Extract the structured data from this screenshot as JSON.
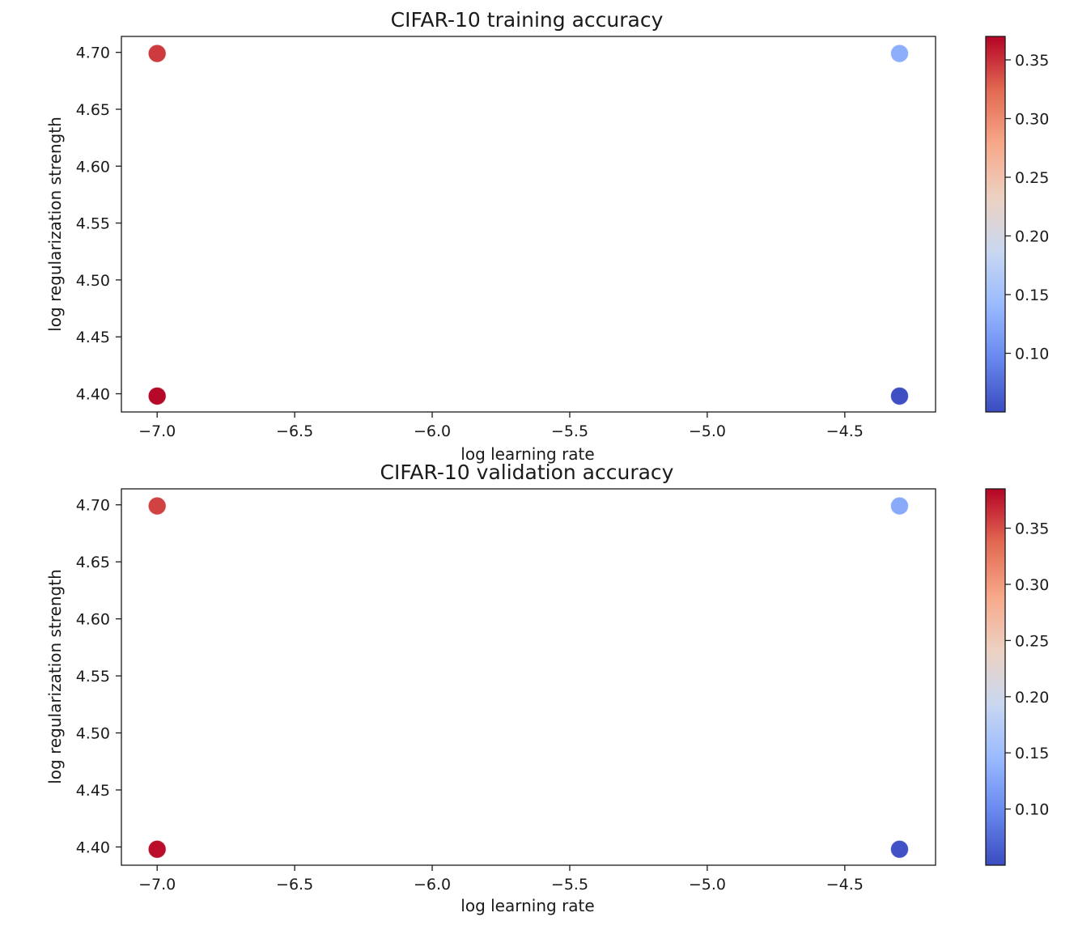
{
  "chart_data": [
    {
      "type": "scatter",
      "title": "CIFAR-10 training accuracy",
      "xlabel": "log learning rate",
      "ylabel": "log regularization strength",
      "xlim": [
        -7.13,
        -4.17
      ],
      "ylim": [
        4.384,
        4.714
      ],
      "xticks": [
        -7.0,
        -6.5,
        -6.0,
        -5.5,
        -5.0,
        -4.5
      ],
      "xtick_labels": [
        "−7.0",
        "−6.5",
        "−6.0",
        "−5.5",
        "−5.0",
        "−4.5"
      ],
      "yticks": [
        4.4,
        4.45,
        4.5,
        4.55,
        4.6,
        4.65,
        4.7
      ],
      "ytick_labels": [
        "4.40",
        "4.45",
        "4.50",
        "4.55",
        "4.60",
        "4.65",
        "4.70"
      ],
      "colormap": "coolwarm",
      "color_range": [
        0.05,
        0.37
      ],
      "colorbar_ticks": [
        0.1,
        0.15,
        0.2,
        0.25,
        0.3,
        0.35
      ],
      "colorbar_tick_labels": [
        "0.10",
        "0.15",
        "0.20",
        "0.25",
        "0.30",
        "0.35"
      ],
      "points": [
        {
          "x": -7.0,
          "y": 4.699,
          "value": 0.345
        },
        {
          "x": -7.0,
          "y": 4.398,
          "value": 0.368
        },
        {
          "x": -4.301,
          "y": 4.699,
          "value": 0.13
        },
        {
          "x": -4.301,
          "y": 4.398,
          "value": 0.052
        }
      ]
    },
    {
      "type": "scatter",
      "title": "CIFAR-10 validation accuracy",
      "xlabel": "log learning rate",
      "ylabel": "log regularization strength",
      "xlim": [
        -7.13,
        -4.17
      ],
      "ylim": [
        4.384,
        4.714
      ],
      "xticks": [
        -7.0,
        -6.5,
        -6.0,
        -5.5,
        -5.0,
        -4.5
      ],
      "xtick_labels": [
        "−7.0",
        "−6.5",
        "−6.0",
        "−5.5",
        "−5.0",
        "−4.5"
      ],
      "yticks": [
        4.4,
        4.45,
        4.5,
        4.55,
        4.6,
        4.65,
        4.7
      ],
      "ytick_labels": [
        "4.40",
        "4.45",
        "4.50",
        "4.55",
        "4.60",
        "4.65",
        "4.70"
      ],
      "colormap": "coolwarm",
      "color_range": [
        0.05,
        0.385
      ],
      "colorbar_ticks": [
        0.1,
        0.15,
        0.2,
        0.25,
        0.3,
        0.35
      ],
      "colorbar_tick_labels": [
        "0.10",
        "0.15",
        "0.20",
        "0.25",
        "0.30",
        "0.35"
      ],
      "points": [
        {
          "x": -7.0,
          "y": 4.699,
          "value": 0.355
        },
        {
          "x": -7.0,
          "y": 4.398,
          "value": 0.38
        },
        {
          "x": -4.301,
          "y": 4.699,
          "value": 0.13
        },
        {
          "x": -4.301,
          "y": 4.398,
          "value": 0.055
        }
      ]
    }
  ],
  "colors": {
    "coolwarm_stops": [
      "#3b4cc0",
      "#6788ee",
      "#9abbff",
      "#c9d7f0",
      "#edd1c2",
      "#f7a889",
      "#e26952",
      "#b40426"
    ],
    "axis": "#1a1a1a",
    "background": "#ffffff"
  }
}
